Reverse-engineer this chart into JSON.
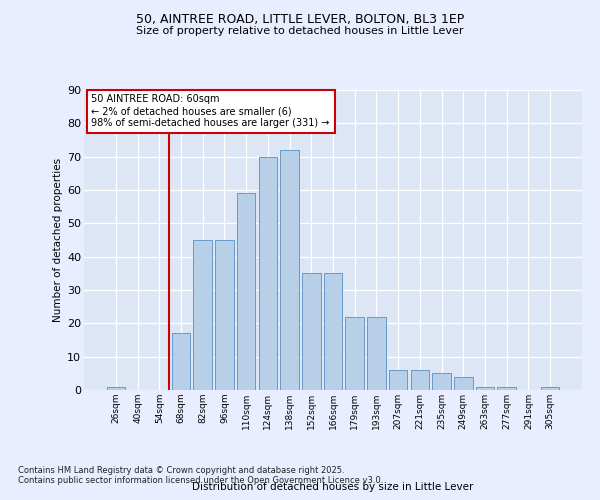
{
  "title1": "50, AINTREE ROAD, LITTLE LEVER, BOLTON, BL3 1EP",
  "title2": "Size of property relative to detached houses in Little Lever",
  "xlabel": "Distribution of detached houses by size in Little Lever",
  "ylabel": "Number of detached properties",
  "categories": [
    "26sqm",
    "40sqm",
    "54sqm",
    "68sqm",
    "82sqm",
    "96sqm",
    "110sqm",
    "124sqm",
    "138sqm",
    "152sqm",
    "166sqm",
    "179sqm",
    "193sqm",
    "207sqm",
    "221sqm",
    "235sqm",
    "249sqm",
    "263sqm",
    "277sqm",
    "291sqm",
    "305sqm"
  ],
  "values": [
    1,
    0,
    0,
    17,
    45,
    45,
    59,
    70,
    72,
    35,
    35,
    22,
    22,
    6,
    6,
    5,
    4,
    1,
    1,
    0,
    1
  ],
  "bar_color": "#b8cfe8",
  "bar_edge_color": "#6699cc",
  "annotation_text": "50 AINTREE ROAD: 60sqm\n← 2% of detached houses are smaller (6)\n98% of semi-detached houses are larger (331) →",
  "annotation_box_color": "#ffffff",
  "annotation_box_edge": "#cc0000",
  "vline_color": "#cc0000",
  "footer": "Contains HM Land Registry data © Crown copyright and database right 2025.\nContains public sector information licensed under the Open Government Licence v3.0.",
  "bg_color": "#e8eeff",
  "plot_bg_color": "#dde6f5",
  "grid_color": "#ffffff",
  "ylim": [
    0,
    90
  ],
  "yticks": [
    0,
    10,
    20,
    30,
    40,
    50,
    60,
    70,
    80,
    90
  ]
}
